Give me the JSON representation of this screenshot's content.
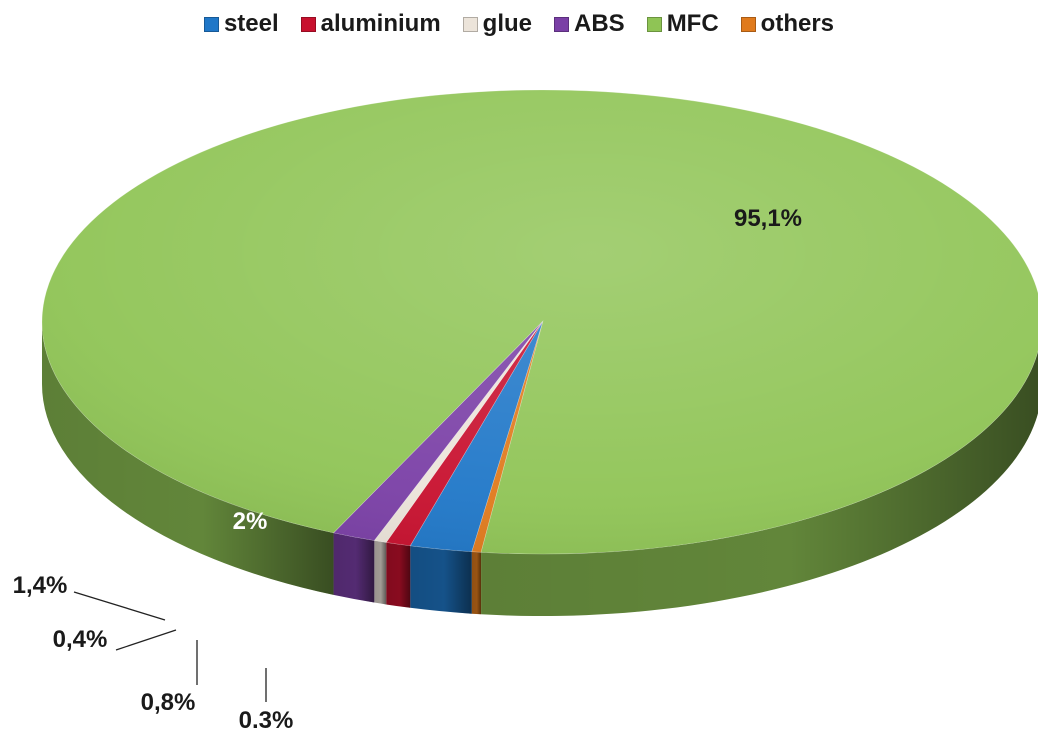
{
  "chart_data": {
    "type": "pie",
    "style": "3d",
    "legend_position": "top",
    "slices": [
      {
        "label": "steel",
        "value": 2.0,
        "display": "2%",
        "color": "#1f77c8"
      },
      {
        "label": "aluminium",
        "value": 0.8,
        "display": "0,8%",
        "color": "#c8102e"
      },
      {
        "label": "glue",
        "value": 0.4,
        "display": "0,4%",
        "color": "#ece4da"
      },
      {
        "label": "ABS",
        "value": 1.4,
        "display": "1,4%",
        "color": "#7a3fa6"
      },
      {
        "label": "MFC",
        "value": 95.1,
        "display": "95,1%",
        "color": "#8fc455"
      },
      {
        "label": "others",
        "value": 0.3,
        "display": "0.3%",
        "color": "#e07a1c"
      }
    ]
  }
}
